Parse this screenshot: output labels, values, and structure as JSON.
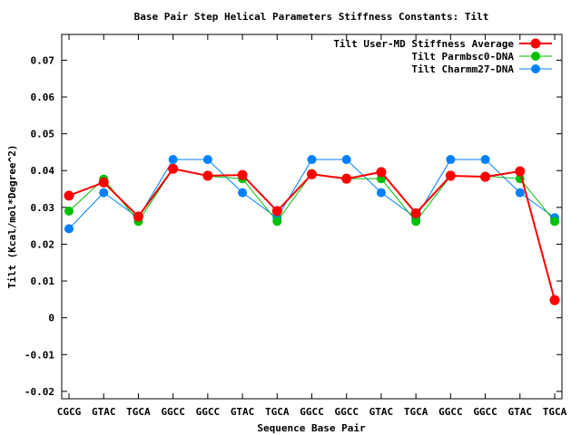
{
  "chart_data": {
    "type": "line",
    "title": "Base Pair Step Helical Parameters Stiffness Constants: Tilt",
    "xlabel": "Sequence Base Pair",
    "ylabel": "Tilt (Kcal/mol*Degree^2)",
    "categories": [
      "CGCG",
      "GTAC",
      "TGCA",
      "GGCC",
      "GGCC",
      "GTAC",
      "TGCA",
      "GGCC",
      "GGCC",
      "GTAC",
      "TGCA",
      "GGCC",
      "GGCC",
      "GTAC",
      "TGCA"
    ],
    "ylim": [
      -0.022,
      0.077
    ],
    "yticks": [
      -0.02,
      -0.01,
      0,
      0.01,
      0.02,
      0.03,
      0.04,
      0.05,
      0.06,
      0.07
    ],
    "ytick_labels": [
      "-0.02",
      "-0.01",
      "0",
      "0.01",
      "0.02",
      "0.03",
      "0.04",
      "0.05",
      "0.06",
      "0.07"
    ],
    "grid": false,
    "legend_position": "top-right",
    "series": [
      {
        "name": "Tilt User-MD Stiffness Average",
        "color": "#ff0000",
        "values": [
          0.0332,
          0.0368,
          0.0275,
          0.0405,
          0.0386,
          0.0388,
          0.029,
          0.039,
          0.0378,
          0.0396,
          0.0284,
          0.0386,
          0.0383,
          0.0398,
          0.0048
        ]
      },
      {
        "name": "Tilt Parmbsc0-DNA",
        "color": "#00c000",
        "values": [
          0.029,
          0.0377,
          0.0262,
          0.0405,
          0.0385,
          0.0378,
          0.0262,
          0.0392,
          0.0378,
          0.0378,
          0.0262,
          0.0385,
          0.0385,
          0.0378,
          0.0262
        ]
      },
      {
        "name": "Tilt Charmm27-DNA",
        "color": "#0080ff",
        "values": [
          0.0242,
          0.034,
          0.0272,
          0.043,
          0.043,
          0.034,
          0.0272,
          0.043,
          0.043,
          0.034,
          0.0272,
          0.043,
          0.043,
          0.034,
          0.0272
        ]
      }
    ]
  }
}
